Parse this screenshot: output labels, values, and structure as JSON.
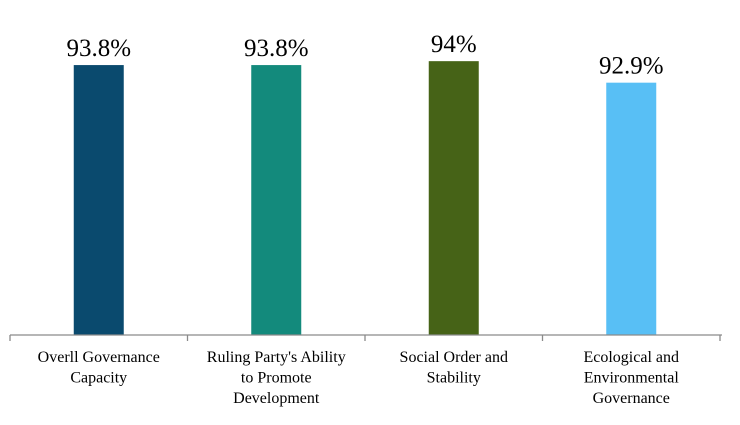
{
  "chart_data": {
    "type": "bar",
    "title": "",
    "xlabel": "",
    "ylabel": "",
    "ylim": [
      80,
      95
    ],
    "grid": false,
    "legend": "none",
    "categories": [
      [
        "Overll Governance",
        "Capacity"
      ],
      [
        "Ruling Party's Ability",
        "to Promote",
        "Development"
      ],
      [
        "Social Order and",
        "Stability"
      ],
      [
        "Ecological and",
        "Environmental",
        "Governance"
      ]
    ],
    "values": [
      93.8,
      93.8,
      94,
      92.9
    ],
    "data_labels": [
      "93.8%",
      "93.8%",
      "94%",
      "92.9%"
    ],
    "colors": [
      "#0a4a6e",
      "#138a7c",
      "#466317",
      "#58bff5"
    ]
  }
}
